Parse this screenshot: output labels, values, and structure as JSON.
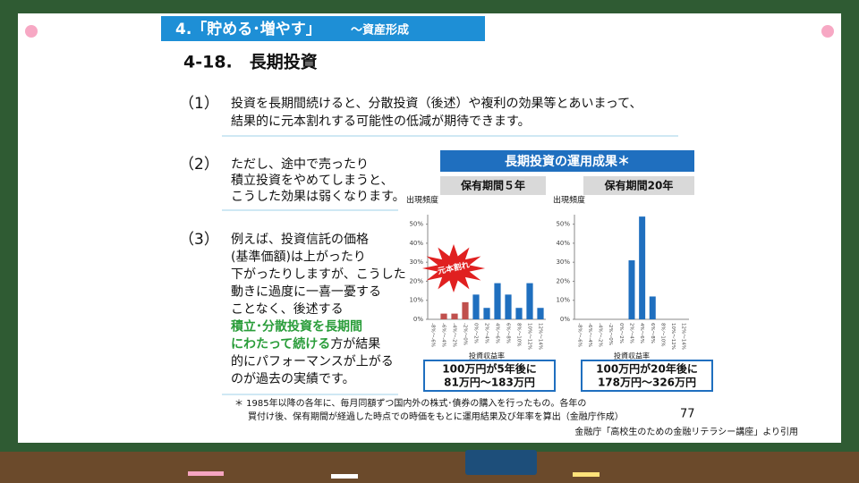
{
  "header": {
    "section": "4.「貯める･増やす」",
    "subsection": "～資産形成"
  },
  "title": "4-18.　長期投資",
  "items": [
    {
      "number": "（1）",
      "lines": [
        [
          {
            "text": "投資を長期間続けると、分散投資（後述）や複利の効果等とあいまって、"
          }
        ],
        [
          {
            "text": "結果的に元本割れする可能性の低減が期待できます。"
          }
        ]
      ]
    },
    {
      "number": "（2）",
      "lines": [
        [
          {
            "text": "ただし、途中で売ったり"
          }
        ],
        [
          {
            "text": "積立投資をやめてしまうと、"
          }
        ],
        [
          {
            "text": "こうした効果は弱くなります。"
          }
        ]
      ]
    },
    {
      "number": "（3）",
      "lines": [
        [
          {
            "text": "例えば、投資信託の価格"
          }
        ],
        [
          {
            "text": "(基準価額)は上がったり"
          }
        ],
        [
          {
            "text": "下がったりしますが、こうした"
          }
        ],
        [
          {
            "text": "動きに過度に一喜一憂する"
          }
        ],
        [
          {
            "text": "ことなく、後述する"
          }
        ],
        [
          {
            "text": "積立･分散投資を長期間",
            "highlight": true
          }
        ],
        [
          {
            "text": "にわたって続ける",
            "highlight": true
          },
          {
            "text": "方が結果"
          }
        ],
        [
          {
            "text": "的にパフォーマンスが上がる"
          }
        ],
        [
          {
            "text": "のが過去の実績です。"
          }
        ]
      ]
    }
  ],
  "panel_title": "長期投資の運用成果＊",
  "burst_label": "元本割れ",
  "charts": [
    {
      "type": "bar",
      "subtitle": "保有期間５年",
      "y_label": "出現頻度",
      "x_label": "投資収益率",
      "categories": [
        "-8%～-6%",
        "-6%～-4%",
        "-4%～-2%",
        "-2%～0%",
        "0%～2%",
        "2%～4%",
        "4%～6%",
        "6%～8%",
        "8%～10%",
        "10%～12%",
        "12%～14%"
      ],
      "values": [
        0,
        3,
        3,
        9,
        13,
        6,
        19,
        13,
        6,
        19,
        6
      ],
      "colors": [
        "#c0504d",
        "#c0504d",
        "#c0504d",
        "#c0504d",
        "#1f6fbf",
        "#1f6fbf",
        "#1f6fbf",
        "#1f6fbf",
        "#1f6fbf",
        "#1f6fbf",
        "#1f6fbf"
      ],
      "ylim": [
        0,
        55
      ],
      "yticks": [
        {
          "value": 0,
          "label": "0%"
        },
        {
          "value": 10,
          "label": "10%"
        },
        {
          "value": 20,
          "label": "20%"
        },
        {
          "value": 30,
          "label": "30%"
        },
        {
          "value": 40,
          "label": "40%"
        },
        {
          "value": 50,
          "label": "50%"
        }
      ],
      "note": [
        "100万円が5年後に",
        "81万円～183万円"
      ]
    },
    {
      "type": "bar",
      "subtitle": "保有期間20年",
      "y_label": "出現頻度",
      "x_label": "投資収益率",
      "categories": [
        "-8%～-6%",
        "-6%～-4%",
        "-4%～-2%",
        "-2%～0%",
        "0%～2%",
        "2%～4%",
        "4%～6%",
        "6%～8%",
        "8%～10%",
        "10%～12%",
        "12%～14%"
      ],
      "values": [
        0,
        0,
        0,
        0,
        0,
        31,
        54,
        12,
        0,
        0,
        0
      ],
      "colors": [
        "#1f6fbf",
        "#1f6fbf",
        "#1f6fbf",
        "#1f6fbf",
        "#1f6fbf",
        "#1f6fbf",
        "#1f6fbf",
        "#1f6fbf",
        "#1f6fbf",
        "#1f6fbf",
        "#1f6fbf"
      ],
      "ylim": [
        0,
        55
      ],
      "yticks": [
        {
          "value": 0,
          "label": "0%"
        },
        {
          "value": 10,
          "label": "10%"
        },
        {
          "value": 20,
          "label": "20%"
        },
        {
          "value": 30,
          "label": "30%"
        },
        {
          "value": 40,
          "label": "40%"
        },
        {
          "value": 50,
          "label": "50%"
        }
      ],
      "note": [
        "100万円が20年後に",
        "178万円～326万円"
      ]
    }
  ],
  "footnote": [
    "＊ 1985年以降の各年に、毎月同額ずつ国内外の株式･債券の購入を行ったもの。各年の",
    "買付け後、保有期間が経過した時点での時価をもとに運用結果及び年率を算出（金融庁作成）"
  ],
  "page_number": "77",
  "source": "金融庁「高校生のための金融リテラシー講座」より引用"
}
